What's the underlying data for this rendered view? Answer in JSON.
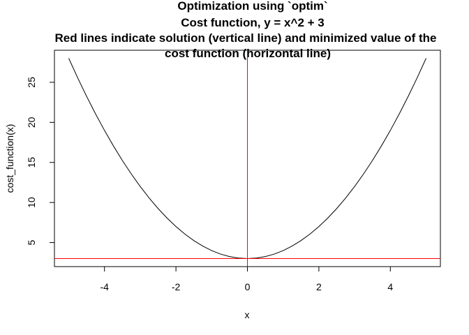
{
  "chart_data": {
    "type": "line",
    "title_lines": [
      "Optimization using `optim`",
      "Cost function, y = x^2 + 3",
      "Red lines indicate solution (vertical line) and minimized value of the",
      "cost function (horizontal line)"
    ],
    "xlabel": "x",
    "ylabel": "cost_function(x)",
    "xlim": [
      -5.4,
      5.4
    ],
    "ylim": [
      2,
      29
    ],
    "x_ticks": [
      -4,
      -2,
      0,
      2,
      4
    ],
    "x_tick_labels": [
      "-4",
      "-2",
      "0",
      "2",
      "4"
    ],
    "y_ticks": [
      5,
      10,
      15,
      20,
      25
    ],
    "y_tick_labels": [
      "5",
      "10",
      "15",
      "20",
      "25"
    ],
    "grid": false,
    "series": [
      {
        "color": "#000000",
        "x": [
          -5.0,
          -4.75,
          -4.5,
          -4.25,
          -4.0,
          -3.75,
          -3.5,
          -3.25,
          -3.0,
          -2.75,
          -2.5,
          -2.25,
          -2.0,
          -1.75,
          -1.5,
          -1.25,
          -1.0,
          -0.75,
          -0.5,
          -0.25,
          0.0,
          0.25,
          0.5,
          0.75,
          1.0,
          1.25,
          1.5,
          1.75,
          2.0,
          2.25,
          2.5,
          2.75,
          3.0,
          3.25,
          3.5,
          3.75,
          4.0,
          4.25,
          4.5,
          4.75,
          5.0
        ],
        "y": [
          28.0,
          25.5625,
          23.25,
          21.0625,
          19.0,
          17.0625,
          15.25,
          13.5625,
          12.0,
          10.5625,
          9.25,
          8.0625,
          7.0,
          6.0625,
          5.25,
          4.5625,
          4.0,
          3.5625,
          3.25,
          3.0625,
          3.0,
          3.0625,
          3.25,
          3.5625,
          4.0,
          4.5625,
          5.25,
          6.0625,
          7.0,
          8.0625,
          9.25,
          10.5625,
          12.0,
          13.5625,
          15.25,
          17.0625,
          19.0,
          21.0625,
          23.25,
          25.5625,
          28.0
        ]
      }
    ],
    "reference_lines": {
      "vertical_x": 0,
      "horizontal_y": 3,
      "color": "#ff0000"
    }
  }
}
